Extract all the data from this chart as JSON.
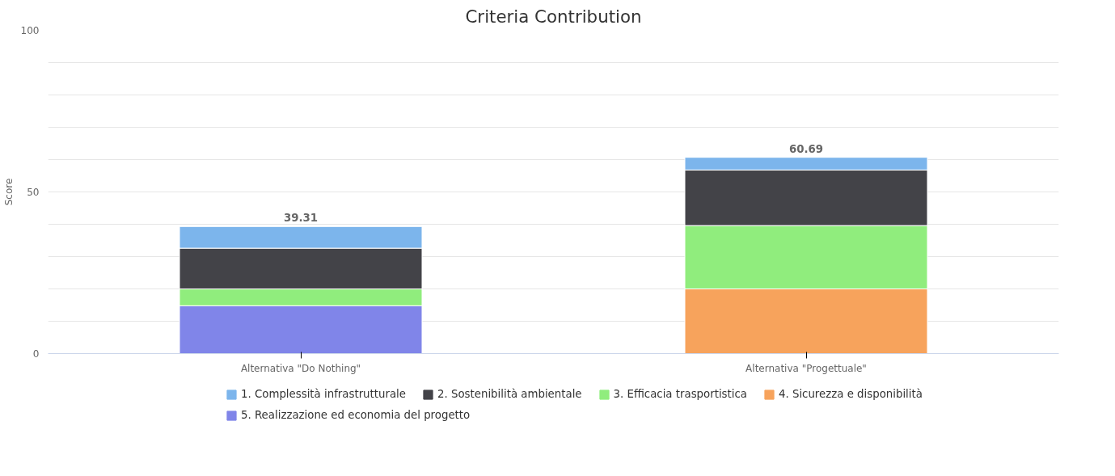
{
  "chart_data": {
    "type": "bar",
    "title": "Criteria Contribution",
    "ylabel": "Score",
    "categories": [
      "Alternativa \"Do Nothing\"",
      "Alternativa \"Progettuale\""
    ],
    "stacked": true,
    "series": [
      {
        "name": "5. Realizzazione ed economia del progetto",
        "color": "#8085e9",
        "values": [
          14.8,
          null
        ]
      },
      {
        "name": "4. Sicurezza e disponibilità",
        "color": "#f7a35c",
        "values": [
          null,
          20
        ]
      },
      {
        "name": "3. Efficacia trasportistica",
        "color": "#90ed7d",
        "values": [
          5.2,
          19.6
        ]
      },
      {
        "name": "2. Sostenibilità ambientale",
        "color": "#434348",
        "values": [
          12.6,
          17.2
        ]
      },
      {
        "name": "1. Complessità infrastrutturale",
        "color": "#7cb5ec",
        "values": [
          6.7,
          3.9
        ]
      }
    ],
    "totals": [
      "39.31",
      "60.69"
    ],
    "ylim": [
      0,
      100
    ],
    "yticks": [
      0,
      {
        "value": 10,
        "label": null
      },
      {
        "value": 20,
        "label": null
      },
      {
        "value": 30,
        "label": null
      },
      {
        "value": 40,
        "label": null
      },
      50,
      {
        "value": 60,
        "label": null
      },
      {
        "value": 70,
        "label": null
      },
      {
        "value": 80,
        "label": null
      },
      {
        "value": 90,
        "label": null
      },
      100
    ],
    "grid": "y",
    "legend": "bottom"
  }
}
